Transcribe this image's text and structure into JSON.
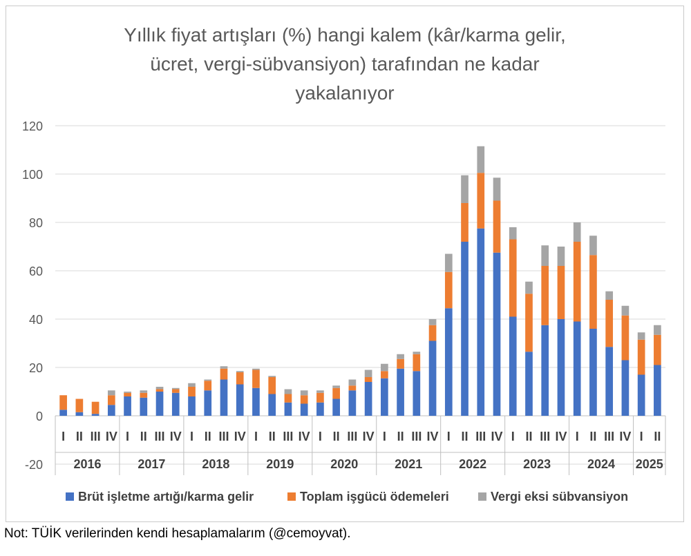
{
  "title_lines": [
    "Yıllık fiyat artışları (%) hangi kalem (kâr/karma gelir,",
    "ücret, vergi-sübvansiyon) tarafından ne kadar",
    "yakalanıyor"
  ],
  "note": "Not: TÜİK verilerinden kendi hesaplamalarım (@cemoyvat).",
  "chart_data": {
    "type": "bar",
    "stacked": true,
    "title": "Yıllık fiyat artışları (%) hangi kalem (kâr/karma gelir, ücret, vergi-sübvansiyon) tarafından ne kadar yakalanıyor",
    "ylim": [
      -20,
      120
    ],
    "yticks": [
      -20,
      0,
      20,
      40,
      60,
      80,
      100,
      120
    ],
    "grid": true,
    "legend_position": "bottom",
    "years": [
      {
        "label": "2016",
        "quarters": [
          "I",
          "II",
          "III",
          "IV"
        ]
      },
      {
        "label": "2017",
        "quarters": [
          "I",
          "II",
          "III",
          "IV"
        ]
      },
      {
        "label": "2018",
        "quarters": [
          "I",
          "II",
          "III",
          "IV"
        ]
      },
      {
        "label": "2019",
        "quarters": [
          "I",
          "II",
          "III",
          "IV"
        ]
      },
      {
        "label": "2020",
        "quarters": [
          "I",
          "II",
          "III",
          "IV"
        ]
      },
      {
        "label": "2021",
        "quarters": [
          "I",
          "II",
          "III",
          "IV"
        ]
      },
      {
        "label": "2022",
        "quarters": [
          "I",
          "II",
          "III",
          "IV"
        ]
      },
      {
        "label": "2023",
        "quarters": [
          "I",
          "II",
          "III",
          "IV"
        ]
      },
      {
        "label": "2024",
        "quarters": [
          "I",
          "II",
          "III",
          "IV"
        ]
      },
      {
        "label": "2025",
        "quarters": [
          "I",
          "II"
        ]
      }
    ],
    "series": [
      {
        "name": "Brüt işletme artığı/karma gelir",
        "color": "#4472c4",
        "values": [
          2.5,
          1.5,
          0.8,
          4.5,
          8,
          7.5,
          10,
          9.5,
          8,
          10.5,
          15,
          13,
          11.5,
          9,
          5.5,
          5,
          5.5,
          7,
          10.5,
          14,
          15.5,
          19.5,
          18.5,
          31,
          44.5,
          72,
          77.5,
          67.5,
          41,
          26.5,
          37.5,
          40,
          39,
          36,
          28.5,
          23,
          17,
          21
        ]
      },
      {
        "name": "Toplam işgücü ödemeleri",
        "color": "#ed7d31",
        "values": [
          6,
          5.5,
          5,
          4,
          1.5,
          2,
          1,
          1.5,
          4,
          4,
          4.5,
          5,
          7.5,
          7,
          3.5,
          3.5,
          4,
          4.5,
          2,
          2,
          3,
          4,
          7,
          6.5,
          15,
          16,
          23,
          21.5,
          32,
          24,
          24.5,
          22,
          33,
          30.5,
          19.5,
          18.5,
          14.5,
          12.5
        ]
      },
      {
        "name": "Vergi eksi sübvansiyon",
        "color": "#a5a5a5",
        "values": [
          0,
          0,
          0,
          2,
          0.5,
          1,
          1,
          0.5,
          1.5,
          0.5,
          1,
          0.5,
          0.5,
          0.5,
          2,
          2,
          1,
          1,
          2.5,
          3,
          3,
          2,
          1,
          2.5,
          7.5,
          11.5,
          11,
          9.5,
          5,
          5,
          8.5,
          8,
          8,
          8,
          3.5,
          4,
          3,
          4
        ]
      }
    ]
  }
}
